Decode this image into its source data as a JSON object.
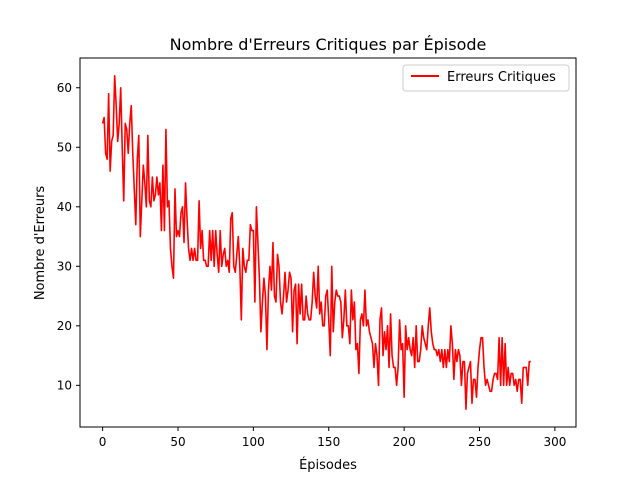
{
  "chart_data": {
    "type": "line",
    "title": "Nombre d'Erreurs Critiques par Épisode",
    "xlabel": "Épisodes",
    "ylabel": "Nombre d'Erreurs",
    "xlim": [
      -15,
      314
    ],
    "ylim": [
      3,
      65
    ],
    "xticks": [
      0,
      50,
      100,
      150,
      200,
      250,
      300
    ],
    "yticks": [
      10,
      20,
      30,
      40,
      50,
      60
    ],
    "grid": false,
    "legend_position": "top-right",
    "series": [
      {
        "name": "Erreurs Critiques",
        "color": "#ff0000",
        "x_start": 0,
        "x_step": 1,
        "values": [
          54,
          55,
          49,
          48,
          59,
          46,
          51,
          52,
          62,
          57,
          51,
          54,
          60,
          50,
          41,
          54,
          53,
          49,
          54,
          57,
          49,
          43,
          37,
          48,
          52,
          35,
          41,
          47,
          44,
          40,
          52,
          41,
          40,
          45,
          41,
          42,
          45,
          42,
          44,
          36,
          47,
          36,
          53,
          40,
          41,
          33,
          30,
          28,
          43,
          35,
          36,
          35,
          39,
          40,
          34,
          44,
          38,
          33,
          31,
          33,
          31,
          33,
          31,
          31,
          41,
          33,
          36,
          31,
          31,
          30,
          30,
          36,
          31,
          36,
          30,
          36,
          32,
          29,
          36,
          30,
          32,
          33,
          30,
          31,
          29,
          38,
          39,
          30,
          29,
          32,
          35,
          30,
          21,
          33,
          30,
          29,
          31,
          31,
          37,
          36,
          36,
          24,
          40,
          34,
          28,
          19,
          24,
          28,
          25,
          16,
          26,
          30,
          26,
          34,
          25,
          24,
          32,
          30,
          24,
          22,
          25,
          29,
          24,
          26,
          29,
          28,
          19,
          26,
          27,
          17,
          27,
          22,
          27,
          21,
          21,
          25,
          22,
          21,
          21,
          24,
          29,
          25,
          23,
          30,
          22,
          24,
          20,
          20,
          25,
          26,
          21,
          15,
          30,
          19,
          24,
          26,
          25,
          25,
          24,
          18,
          21,
          26,
          20,
          20,
          17,
          26,
          21,
          24,
          16,
          17,
          12,
          21,
          22,
          20,
          26,
          20,
          21,
          19,
          18,
          17,
          13,
          17,
          15,
          10,
          21,
          23,
          15,
          19,
          16,
          20,
          13,
          22,
          15,
          13,
          13,
          10,
          13,
          21,
          16,
          17,
          8,
          20,
          16,
          18,
          16,
          15,
          18,
          13,
          20,
          14,
          14,
          16,
          20,
          18,
          17,
          16,
          20,
          23,
          19,
          17,
          16,
          16,
          15,
          16,
          14,
          16,
          13,
          16,
          13,
          16,
          14,
          20,
          17,
          11,
          16,
          14,
          16,
          15,
          10,
          14,
          14,
          6,
          12,
          13,
          14,
          7,
          11,
          11,
          8,
          13,
          16,
          18,
          18,
          13,
          10,
          11,
          10,
          9,
          9,
          11,
          12,
          12,
          11,
          18,
          10,
          18,
          10,
          17,
          10,
          13,
          10,
          12,
          12,
          10,
          11,
          9,
          11,
          11,
          7,
          13,
          13,
          13,
          10,
          14,
          14
        ],
        "x": null
      }
    ]
  }
}
